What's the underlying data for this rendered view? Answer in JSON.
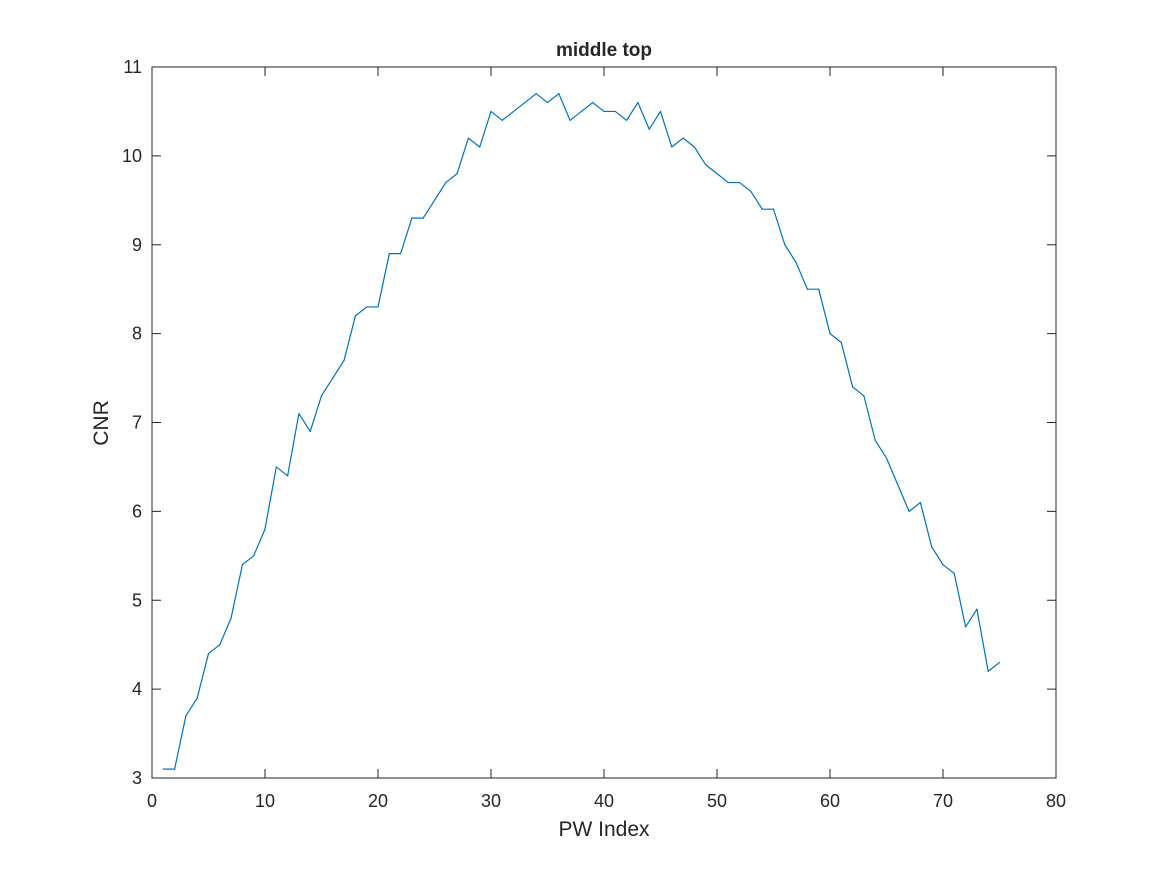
{
  "chart_data": {
    "type": "line",
    "title": "middle top",
    "xlabel": "PW Index",
    "ylabel": "CNR",
    "xlim": [
      0,
      80
    ],
    "ylim": [
      3,
      11
    ],
    "xticks": [
      0,
      10,
      20,
      30,
      40,
      50,
      60,
      70,
      80
    ],
    "yticks": [
      3,
      4,
      5,
      6,
      7,
      8,
      9,
      10,
      11
    ],
    "grid": false,
    "legend": "none",
    "series_color": "#0072BD",
    "axis_color": "#262626",
    "x": [
      1,
      2,
      3,
      4,
      5,
      6,
      7,
      8,
      9,
      10,
      11,
      12,
      13,
      14,
      15,
      16,
      17,
      18,
      19,
      20,
      21,
      22,
      23,
      24,
      25,
      26,
      27,
      28,
      29,
      30,
      31,
      32,
      33,
      34,
      35,
      36,
      37,
      38,
      39,
      40,
      41,
      42,
      43,
      44,
      45,
      46,
      47,
      48,
      49,
      50,
      51,
      52,
      53,
      54,
      55,
      56,
      57,
      58,
      59,
      60,
      61,
      62,
      63,
      64,
      65,
      66,
      67,
      68,
      69,
      70,
      71,
      72,
      73,
      74,
      75
    ],
    "series": [
      {
        "values": [
          3.1,
          3.1,
          3.7,
          3.9,
          4.4,
          4.5,
          4.8,
          5.4,
          5.5,
          5.8,
          6.5,
          6.4,
          7.1,
          6.9,
          7.3,
          7.5,
          7.7,
          8.2,
          8.3,
          8.3,
          8.9,
          8.9,
          9.3,
          9.3,
          9.5,
          9.7,
          9.8,
          10.2,
          10.1,
          10.5,
          10.4,
          10.5,
          10.6,
          10.7,
          10.6,
          10.7,
          10.4,
          10.5,
          10.6,
          10.5,
          10.5,
          10.4,
          10.6,
          10.3,
          10.5,
          10.1,
          10.2,
          10.1,
          9.9,
          9.8,
          9.7,
          9.7,
          9.6,
          9.4,
          9.4,
          9.0,
          8.8,
          8.5,
          8.5,
          8.0,
          7.9,
          7.4,
          7.3,
          6.8,
          6.6,
          6.3,
          6.0,
          6.1,
          5.6,
          5.4,
          5.3,
          4.7,
          4.9,
          4.2,
          4.3
        ]
      }
    ]
  }
}
